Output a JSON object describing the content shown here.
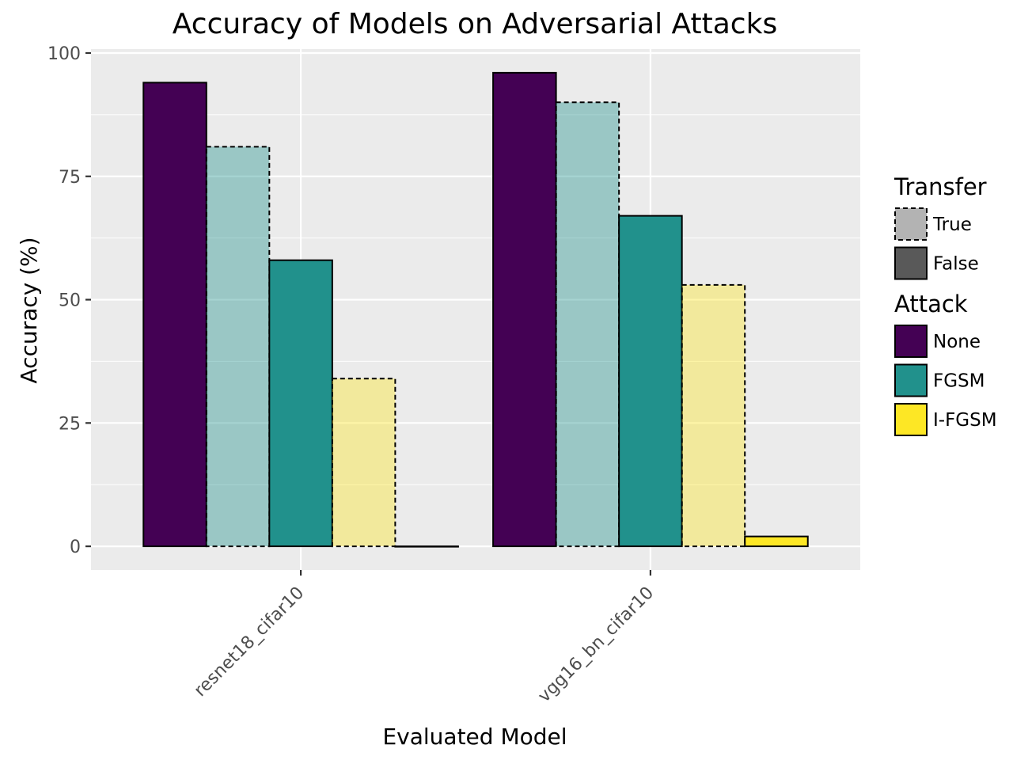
{
  "chart_data": {
    "type": "bar",
    "title": "Accuracy of Models on Adversarial Attacks",
    "xlabel": "Evaluated Model",
    "ylabel": "Accuracy (%)",
    "ylim": [
      -4.8,
      100.8
    ],
    "yticks": [
      0,
      25,
      50,
      75,
      100
    ],
    "grid": true,
    "legend_position": "right",
    "categories": [
      "resnet18_cifar10",
      "vgg16_bn_cifar10"
    ],
    "series": [
      {
        "attack": "None",
        "transfer": "False",
        "values": [
          94,
          96
        ]
      },
      {
        "attack": "FGSM",
        "transfer": "True",
        "values": [
          81,
          90
        ]
      },
      {
        "attack": "FGSM",
        "transfer": "False",
        "values": [
          58,
          67
        ]
      },
      {
        "attack": "I-FGSM",
        "transfer": "True",
        "values": [
          34,
          53
        ]
      },
      {
        "attack": "I-FGSM",
        "transfer": "False",
        "values": [
          0,
          2
        ]
      }
    ],
    "legends": [
      {
        "title": "Transfer",
        "items": [
          {
            "label": "True",
            "fill": "#b3b3b3",
            "dashed": true
          },
          {
            "label": "False",
            "fill": "#595959",
            "dashed": false
          }
        ]
      },
      {
        "title": "Attack",
        "items": [
          {
            "label": "None",
            "fill": "#440154",
            "dashed": false
          },
          {
            "label": "FGSM",
            "fill": "#21918c",
            "dashed": false
          },
          {
            "label": "I-FGSM",
            "fill": "#fde725",
            "dashed": false
          }
        ]
      }
    ],
    "colors": {
      "None": "#440154",
      "FGSM": "#21918c",
      "I-FGSM": "#fde725",
      "panel_background": "#ebebeb",
      "gridline": "#ffffff"
    },
    "transfer_alpha": 0.4
  }
}
